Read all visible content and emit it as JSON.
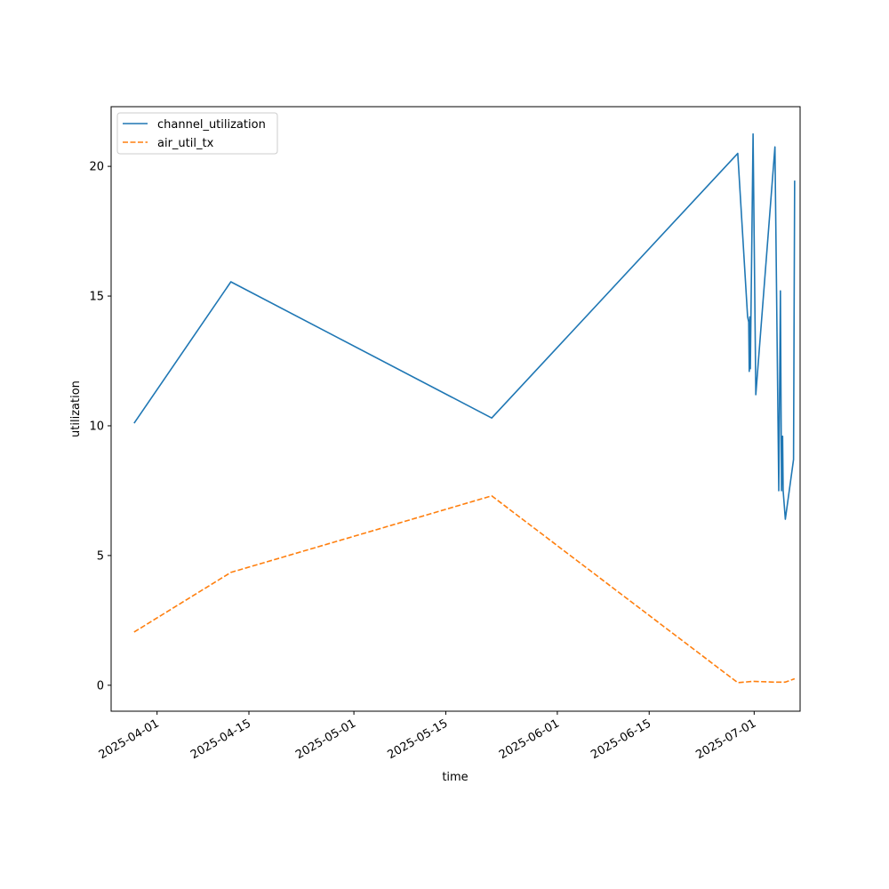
{
  "chart_data": {
    "type": "line",
    "xlabel": "time",
    "ylabel": "utilization",
    "x_axis_type": "date",
    "xlim": [
      "2025-03-25",
      "2025-07-08"
    ],
    "ylim": [
      -1,
      22.3
    ],
    "x_ticks": [
      "2025-04-01",
      "2025-04-15",
      "2025-05-01",
      "2025-05-15",
      "2025-06-01",
      "2025-06-15",
      "2025-07-01"
    ],
    "y_ticks": [
      0,
      5,
      10,
      15,
      20
    ],
    "legend_position": "top-left",
    "grid": false,
    "series": [
      {
        "name": "channel_utilization",
        "color": "#1f77b4",
        "style": "solid",
        "points": [
          [
            "2025-03-28T12:00",
            10.1
          ],
          [
            "2025-04-12T06:00",
            15.55
          ],
          [
            "2025-05-22T00:00",
            10.3
          ],
          [
            "2025-06-28T12:00",
            20.5
          ],
          [
            "2025-06-30T00:00",
            14.2
          ],
          [
            "2025-06-30T04:00",
            14.0
          ],
          [
            "2025-06-30T06:00",
            12.1
          ],
          [
            "2025-06-30T08:00",
            14.2
          ],
          [
            "2025-06-30T10:00",
            12.2
          ],
          [
            "2025-06-30T20:00",
            21.25
          ],
          [
            "2025-07-01T06:00",
            11.2
          ],
          [
            "2025-07-04T04:00",
            20.75
          ],
          [
            "2025-07-04T18:00",
            7.5
          ],
          [
            "2025-07-05T00:00",
            15.2
          ],
          [
            "2025-07-05T04:00",
            7.5
          ],
          [
            "2025-07-05T08:00",
            9.6
          ],
          [
            "2025-07-05T10:00",
            7.5
          ],
          [
            "2025-07-05T18:00",
            6.4
          ],
          [
            "2025-07-07T00:00",
            8.7
          ],
          [
            "2025-07-07T04:00",
            19.45
          ]
        ]
      },
      {
        "name": "air_util_tx",
        "color": "#ff7f0e",
        "style": "dashed",
        "points": [
          [
            "2025-03-28T12:00",
            2.05
          ],
          [
            "2025-04-12T06:00",
            4.35
          ],
          [
            "2025-05-22T00:00",
            7.3
          ],
          [
            "2025-06-28T12:00",
            0.1
          ],
          [
            "2025-06-30T20:00",
            0.15
          ],
          [
            "2025-07-04T04:00",
            0.12
          ],
          [
            "2025-07-05T18:00",
            0.12
          ],
          [
            "2025-07-07T04:00",
            0.25
          ]
        ]
      }
    ]
  }
}
